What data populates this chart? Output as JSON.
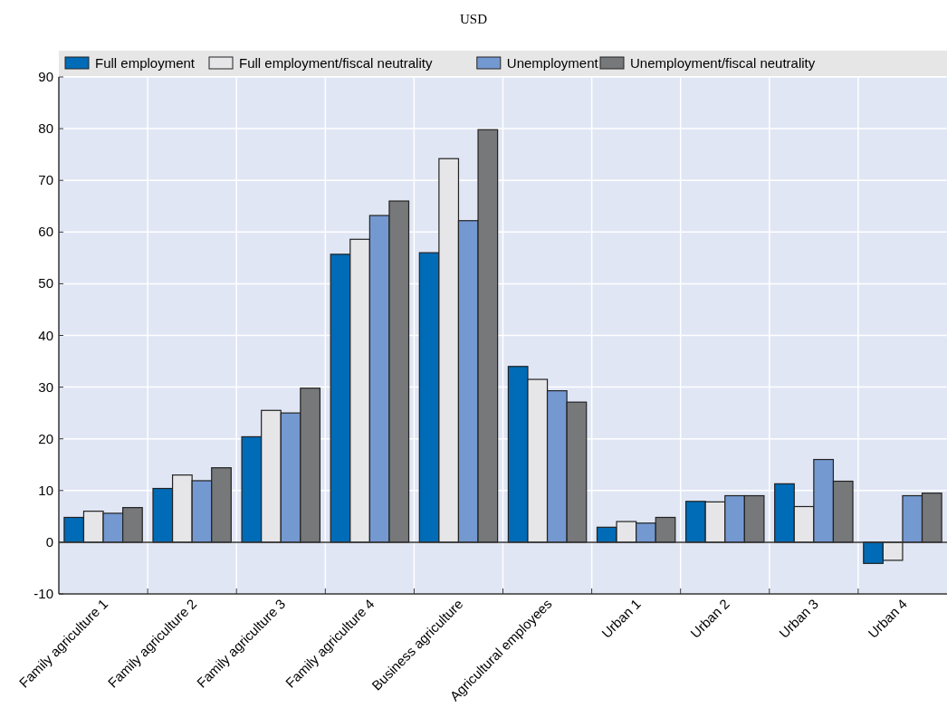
{
  "chart_data": {
    "type": "bar",
    "subtitle": "USD",
    "categories": [
      "Family agriculture 1",
      "Family agriculture 2",
      "Family agriculture 3",
      "Family agriculture 4",
      "Business agriculture",
      "Agricultural employees",
      "Urban 1",
      "Urban 2",
      "Urban 3",
      "Urban 4"
    ],
    "series": [
      {
        "name": "Full employment",
        "color": "#006bb6",
        "values": [
          4.8,
          10.4,
          20.4,
          55.7,
          56,
          34,
          2.9,
          7.9,
          11.3,
          -4.1
        ]
      },
      {
        "name": "Full employment/fiscal neutrality",
        "color": "#e6e6e8",
        "values": [
          6,
          13,
          25.5,
          58.6,
          74.2,
          31.5,
          4,
          7.8,
          6.9,
          -3.5
        ]
      },
      {
        "name": "Unemployment",
        "color": "#7499d1",
        "values": [
          5.6,
          11.9,
          25,
          63.2,
          62.2,
          29.3,
          3.7,
          9,
          16,
          9
        ]
      },
      {
        "name": "Unemployment/fiscal neutrality",
        "color": "#77787a",
        "values": [
          6.7,
          14.4,
          29.8,
          66,
          79.8,
          27.1,
          4.8,
          9,
          11.8,
          9.5
        ]
      }
    ],
    "ylim": [
      -10,
      90
    ],
    "yticks": [
      -10,
      0,
      10,
      20,
      30,
      40,
      50,
      60,
      70,
      80,
      90
    ],
    "grid": true,
    "legend": "top"
  }
}
